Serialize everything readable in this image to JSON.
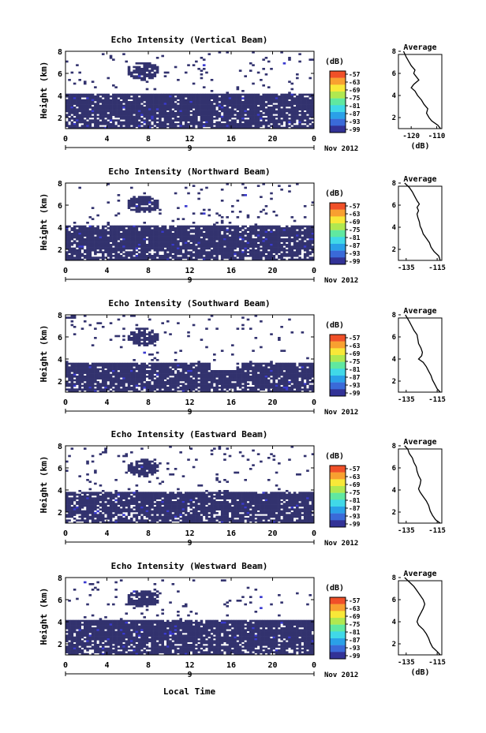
{
  "shared": {
    "heatmap_xticks": [
      "0",
      "4",
      "8",
      "12",
      "16",
      "20",
      "0"
    ],
    "heatmap_yticks": [
      "2",
      "4",
      "6",
      "8"
    ],
    "ylabel": "Height (km)",
    "date_day": "9",
    "date_label": "Nov 2012",
    "colorbar_unit": "(dB)",
    "colorbar_ticks": [
      "-57",
      "-63",
      "-69",
      "-75",
      "-81",
      "-87",
      "-93",
      "-99"
    ],
    "average_title": "Average",
    "average_xlabel": "(dB)",
    "xlabel": "Local Time",
    "colors": {
      "background_echo": "#32326e",
      "weak_echo": "#3a3ad0",
      "colorbar": [
        "#323296",
        "#3a6ad8",
        "#2aa0e8",
        "#40d8e8",
        "#60e8a0",
        "#b0e850",
        "#f8e838",
        "#f8a030",
        "#f05028"
      ]
    }
  },
  "chart_data": [
    {
      "type": "heatmap",
      "title": "Echo Intensity (Vertical Beam)",
      "x_range_hours": [
        0,
        24
      ],
      "y_range_km": [
        1,
        8
      ],
      "bottom_layer_top_km": 4.2,
      "cloud": {
        "time_center_h": 7.5,
        "height_center_km": 6.2
      },
      "average": {
        "xticks": [
          "-120",
          "-110"
        ],
        "xlim": [
          -125,
          -108
        ],
        "ylim": [
          1,
          8
        ],
        "profile": [
          [
            -108.5,
            1
          ],
          [
            -109.5,
            1.3
          ],
          [
            -112,
            1.7
          ],
          [
            -113,
            2.0
          ],
          [
            -114,
            2.4
          ],
          [
            -113.5,
            2.8
          ],
          [
            -115,
            3.2
          ],
          [
            -116,
            3.6
          ],
          [
            -117.5,
            4.0
          ],
          [
            -118.5,
            4.4
          ],
          [
            -120,
            4.7
          ],
          [
            -119,
            5.0
          ],
          [
            -117,
            5.4
          ],
          [
            -118,
            5.7
          ],
          [
            -119,
            6.0
          ],
          [
            -118.5,
            6.3
          ],
          [
            -120,
            6.7
          ],
          [
            -121,
            7.1
          ],
          [
            -122,
            7.5
          ],
          [
            -123,
            8.0
          ]
        ]
      }
    },
    {
      "type": "heatmap",
      "title": "Echo Intensity (Northward Beam)",
      "x_range_hours": [
        0,
        24
      ],
      "y_range_km": [
        1,
        8
      ],
      "bottom_layer_top_km": 4.2,
      "cloud": {
        "time_center_h": 7.5,
        "height_center_km": 6.1
      },
      "average": {
        "xticks": [
          "-135",
          "-115"
        ],
        "xlim": [
          -140,
          -112
        ],
        "ylim": [
          1,
          8
        ],
        "profile": [
          [
            -113,
            1
          ],
          [
            -114,
            1.4
          ],
          [
            -117,
            1.8
          ],
          [
            -119,
            2.2
          ],
          [
            -120,
            2.6
          ],
          [
            -122,
            3.0
          ],
          [
            -124,
            3.4
          ],
          [
            -125,
            3.8
          ],
          [
            -126,
            4.1
          ],
          [
            -126.5,
            4.5
          ],
          [
            -127.5,
            4.9
          ],
          [
            -128,
            5.2
          ],
          [
            -127,
            5.5
          ],
          [
            -128,
            5.8
          ],
          [
            -126.5,
            6.1
          ],
          [
            -128,
            6.4
          ],
          [
            -129.5,
            6.8
          ],
          [
            -131,
            7.2
          ],
          [
            -133,
            7.6
          ],
          [
            -136,
            8.0
          ]
        ]
      }
    },
    {
      "type": "heatmap",
      "title": "Echo Intensity (Southward Beam)",
      "x_range_hours": [
        0,
        24
      ],
      "y_range_km": [
        1,
        8
      ],
      "bottom_layer_top_km": 3.6,
      "cloud": {
        "time_center_h": 7.5,
        "height_center_km": 6.0
      },
      "average": {
        "xticks": [
          "-135",
          "-115"
        ],
        "xlim": [
          -140,
          -112
        ],
        "ylim": [
          1,
          8
        ],
        "profile": [
          [
            -113,
            1
          ],
          [
            -115,
            1.3
          ],
          [
            -116.5,
            1.7
          ],
          [
            -118,
            2.1
          ],
          [
            -119,
            2.5
          ],
          [
            -120.5,
            2.9
          ],
          [
            -122,
            3.3
          ],
          [
            -124,
            3.7
          ],
          [
            -127,
            4.0
          ],
          [
            -125,
            4.3
          ],
          [
            -124.5,
            4.6
          ],
          [
            -125.5,
            5.0
          ],
          [
            -127,
            5.4
          ],
          [
            -127.5,
            5.8
          ],
          [
            -128,
            6.2
          ],
          [
            -130,
            6.6
          ],
          [
            -131.5,
            7.0
          ],
          [
            -133,
            7.4
          ],
          [
            -135.5,
            8.0
          ]
        ]
      }
    },
    {
      "type": "heatmap",
      "title": "Echo Intensity (Eastward Beam)",
      "x_range_hours": [
        0,
        24
      ],
      "y_range_km": [
        1,
        8
      ],
      "bottom_layer_top_km": 3.8,
      "cloud": {
        "time_center_h": 7.5,
        "height_center_km": 6.0
      },
      "average": {
        "xticks": [
          "-135",
          "-115"
        ],
        "xlim": [
          -140,
          -112
        ],
        "ylim": [
          1,
          8
        ],
        "profile": [
          [
            -113,
            1
          ],
          [
            -116,
            1.3
          ],
          [
            -118,
            1.7
          ],
          [
            -119.5,
            2.1
          ],
          [
            -120.5,
            2.6
          ],
          [
            -122,
            3.0
          ],
          [
            -124,
            3.4
          ],
          [
            -126,
            3.8
          ],
          [
            -127,
            4.1
          ],
          [
            -126,
            4.5
          ],
          [
            -125.5,
            4.9
          ],
          [
            -127,
            5.3
          ],
          [
            -128,
            5.7
          ],
          [
            -128.5,
            6.1
          ],
          [
            -130,
            6.5
          ],
          [
            -131,
            6.9
          ],
          [
            -133,
            7.3
          ],
          [
            -134,
            7.7
          ],
          [
            -136,
            8.0
          ]
        ]
      }
    },
    {
      "type": "heatmap",
      "title": "Echo Intensity (Westward Beam)",
      "x_range_hours": [
        0,
        24
      ],
      "y_range_km": [
        1,
        8
      ],
      "bottom_layer_top_km": 4.1,
      "cloud": {
        "time_center_h": 7.5,
        "height_center_km": 6.1
      },
      "average": {
        "xticks": [
          "-135",
          "-115"
        ],
        "xlim": [
          -140,
          -112
        ],
        "ylim": [
          1,
          8
        ],
        "profile": [
          [
            -113,
            1
          ],
          [
            -115,
            1.3
          ],
          [
            -118,
            1.7
          ],
          [
            -119.5,
            2.1
          ],
          [
            -120.5,
            2.5
          ],
          [
            -122,
            2.9
          ],
          [
            -124,
            3.3
          ],
          [
            -127,
            3.7
          ],
          [
            -128,
            4.0
          ],
          [
            -127,
            4.4
          ],
          [
            -125.5,
            4.8
          ],
          [
            -124,
            5.2
          ],
          [
            -123,
            5.6
          ],
          [
            -124,
            6.0
          ],
          [
            -126,
            6.4
          ],
          [
            -128,
            6.8
          ],
          [
            -130,
            7.2
          ],
          [
            -133,
            7.6
          ],
          [
            -136,
            8.0
          ]
        ]
      }
    }
  ]
}
